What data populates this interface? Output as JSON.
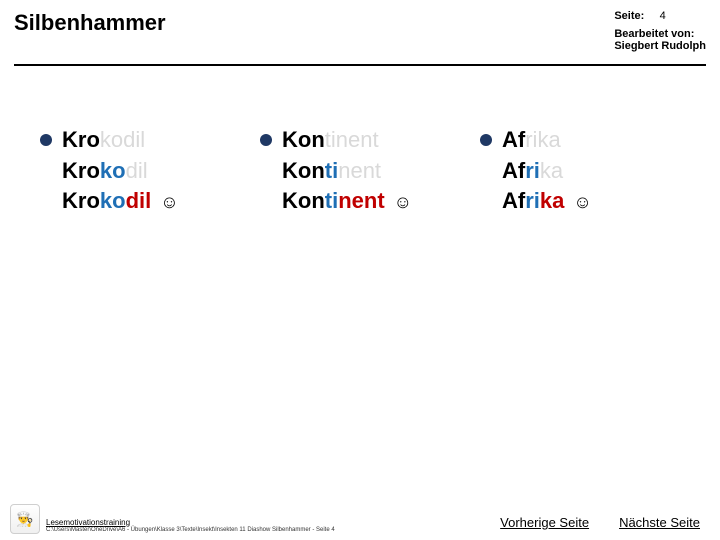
{
  "header": {
    "title": "Silbenhammer",
    "page_label": "Seite:",
    "page_number": "4",
    "edited_by_label": "Bearbeitet von:",
    "edited_by_value": "Siegbert Rudolph"
  },
  "columns": [
    {
      "word": "Krokodil",
      "syllables": [
        "Kro",
        "ko",
        "dil"
      ],
      "syllable_colors": [
        "#000000",
        "#1f6fb5",
        "#c00000"
      ],
      "rows": [
        {
          "visible_until": 1,
          "smile": false
        },
        {
          "visible_until": 2,
          "smile": false
        },
        {
          "visible_until": 3,
          "smile": true
        }
      ]
    },
    {
      "word": "Kontinent",
      "syllables": [
        "Kon",
        "ti",
        "nent"
      ],
      "syllable_colors": [
        "#000000",
        "#1f6fb5",
        "#c00000"
      ],
      "rows": [
        {
          "visible_until": 1,
          "smile": false
        },
        {
          "visible_until": 2,
          "smile": false
        },
        {
          "visible_until": 3,
          "smile": true
        }
      ]
    },
    {
      "word": "Afrika",
      "syllables": [
        "Af",
        "ri",
        "ka"
      ],
      "syllable_colors": [
        "#000000",
        "#1f6fb5",
        "#c00000"
      ],
      "rows": [
        {
          "visible_until": 1,
          "smile": false
        },
        {
          "visible_until": 2,
          "smile": false
        },
        {
          "visible_until": 3,
          "smile": true
        }
      ]
    }
  ],
  "bullet_color": "#1f3864",
  "muted_color": "#d9d9d9",
  "smile_glyph": "☺",
  "footer": {
    "logo_glyph": "👨‍🍳",
    "training_label": "Lesemotivationstraining",
    "path_text": "C:\\Users\\Master\\OneDrive\\A6 - Übungen\\Klasse 3\\Texte\\Insekt\\Insekten 11 Diashow Silbenhammer - Seite 4",
    "prev_label": "Vorherige Seite",
    "next_label": "Nächste Seite"
  }
}
